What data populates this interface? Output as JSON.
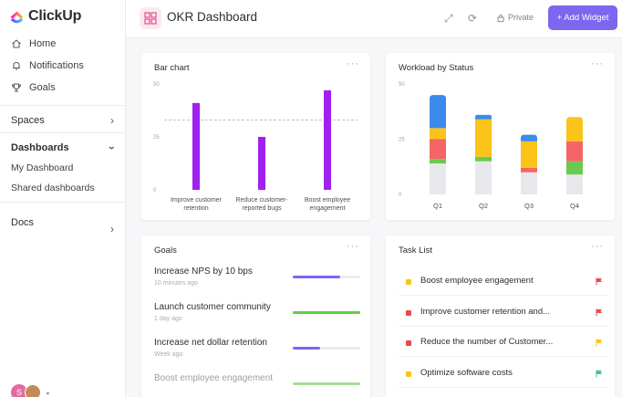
{
  "app": {
    "name": "ClickUp"
  },
  "sidebar": {
    "nav": [
      {
        "label": "Home",
        "icon": "home-icon"
      },
      {
        "label": "Notifications",
        "icon": "bell-icon"
      },
      {
        "label": "Goals",
        "icon": "trophy-icon"
      }
    ],
    "spaces_label": "Spaces",
    "dashboards_label": "Dashboards",
    "dashboard_items": [
      "My Dashboard",
      "Shared dashboards"
    ],
    "docs_label": "Docs",
    "avatar_initial": "S"
  },
  "header": {
    "title": "OKR Dashboard",
    "private_label": "Private",
    "add_widget_label": "+ Add Widget"
  },
  "bar_card": {
    "title": "Bar chart"
  },
  "workload_card": {
    "title": "Workload by Status"
  },
  "goals_card": {
    "title": "Goals"
  },
  "tasks_card": {
    "title": "Task List"
  },
  "chart_data": [
    {
      "type": "bar",
      "title": "Bar chart",
      "categories": [
        "Improve customer retention",
        "Reduce customer-reported bugs",
        "Boost employee engagement"
      ],
      "category_lines": [
        [
          "Improve customer",
          "retention"
        ],
        [
          "Reduce customer-",
          "reported bugs"
        ],
        [
          "Boost employee",
          "engagement"
        ]
      ],
      "values": [
        41,
        25,
        47
      ],
      "ylim": [
        0,
        50
      ],
      "yticks": [
        "50",
        "25",
        "0"
      ],
      "reference_line": 33,
      "color": "#a020f0"
    },
    {
      "type": "bar",
      "stacked": true,
      "title": "Workload by Status",
      "categories": [
        "Q1",
        "Q2",
        "Q3",
        "Q4"
      ],
      "ylim": [
        0,
        50
      ],
      "yticks": [
        "50",
        "25",
        "0"
      ],
      "series": [
        {
          "color": "#e8e8ec",
          "values": [
            14,
            15,
            10,
            9
          ]
        },
        {
          "color": "#6bc950",
          "values": [
            2,
            2,
            0,
            6
          ]
        },
        {
          "color": "#f56565",
          "values": [
            9,
            0,
            2,
            9
          ]
        },
        {
          "color": "#fac418",
          "values": [
            5,
            17,
            12,
            11
          ]
        },
        {
          "color": "#3b8beb",
          "values": [
            15,
            2,
            3,
            0
          ]
        }
      ]
    }
  ],
  "goals": [
    {
      "title": "Increase NPS by 10 bps",
      "sub": "10 minutes ago",
      "progress": 0.7,
      "color": "#7b68ee"
    },
    {
      "title": "Launch customer community",
      "sub": "1 day ago",
      "progress": 1.0,
      "color": "#5dd13c"
    },
    {
      "title": "Increase net dollar retention",
      "sub": "Week ago",
      "progress": 0.4,
      "color": "#7b68ee"
    },
    {
      "title": "Boost employee engagement",
      "sub": "",
      "progress": 1.0,
      "color": "#5dd13c"
    }
  ],
  "tasks": [
    {
      "label": "Boost employee engagement",
      "dot": "#fac418",
      "flag": "#e44c4c"
    },
    {
      "label": "Improve customer retention and...",
      "dot": "#e44c4c",
      "flag": "#e44c4c"
    },
    {
      "label": "Reduce the number of Customer...",
      "dot": "#e44c4c",
      "flag": "#fac418"
    },
    {
      "label": "Optimize software costs",
      "dot": "#fac418",
      "flag": "#3fbf9f"
    }
  ]
}
